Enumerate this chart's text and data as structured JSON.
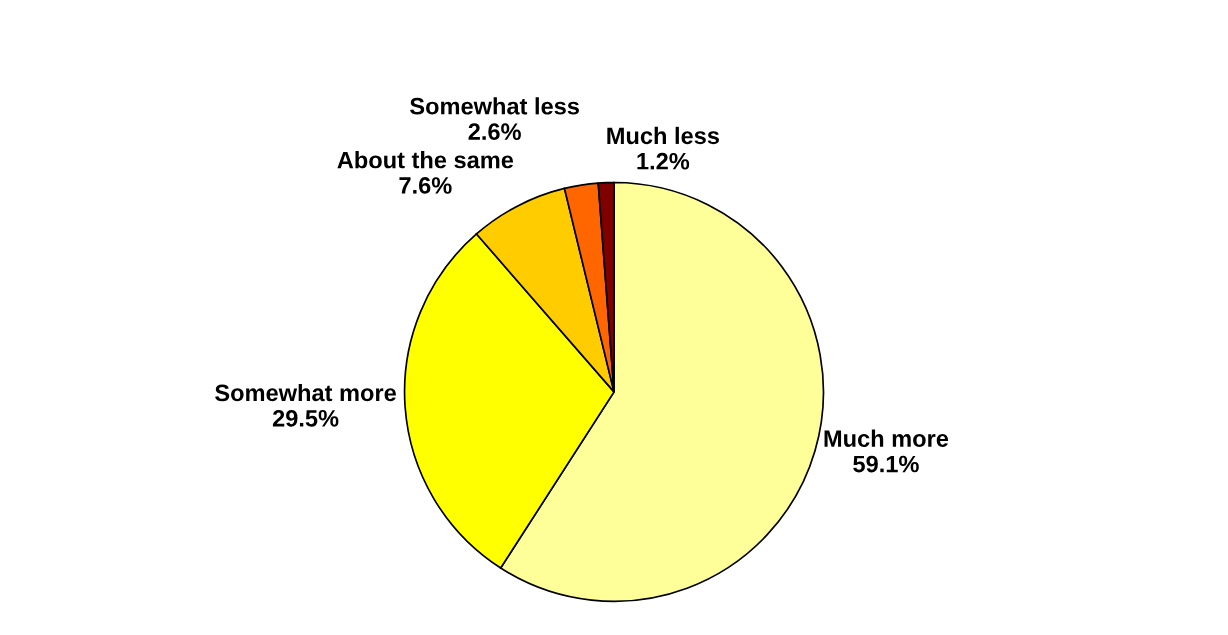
{
  "chart_data": {
    "type": "pie",
    "categories": [
      "Much more",
      "Somewhat more",
      "About the same",
      "Somewhat less",
      "Much less"
    ],
    "values": [
      59.1,
      29.5,
      7.6,
      2.6,
      1.2
    ],
    "value_labels": [
      "59.1%",
      "29.5%",
      "7.6%",
      "2.6%",
      "1.2%"
    ],
    "colors": [
      "#ffff99",
      "#ffff00",
      "#ffcc00",
      "#ff6600",
      "#800000"
    ],
    "legend": false
  }
}
